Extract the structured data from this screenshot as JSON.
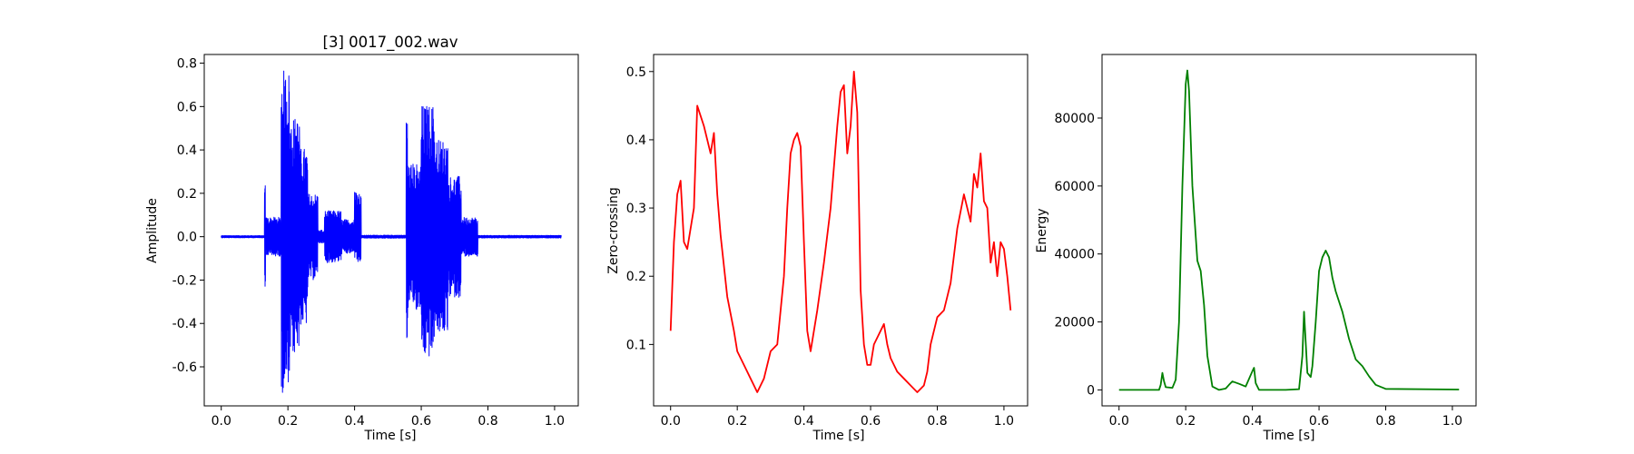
{
  "chart_data": [
    {
      "type": "line",
      "title": "[3] 0017_002.wav",
      "xlabel": "Time [s]",
      "ylabel": "Amplitude",
      "xlim": [
        -0.051,
        1.071
      ],
      "ylim": [
        -0.78,
        0.84
      ],
      "xticks": [
        "0.0",
        "0.2",
        "0.4",
        "0.6",
        "0.8",
        "1.0"
      ],
      "yticks": [
        "-0.6",
        "-0.4",
        "-0.2",
        "0.0",
        "0.2",
        "0.4",
        "0.6",
        "0.8"
      ],
      "grid": false,
      "series": [
        {
          "color": "#0000ff",
          "style": "waveform",
          "segments": [
            {
              "x": [
                0.0,
                0.13
              ],
              "amp": 0.005
            },
            {
              "x": [
                0.13,
                0.133
              ],
              "amp": 0.24,
              "min": -0.26
            },
            {
              "x": [
                0.133,
                0.18
              ],
              "amp": 0.09
            },
            {
              "x": [
                0.18,
                0.205
              ],
              "amp": 0.72,
              "max": 0.77,
              "min": -0.72
            },
            {
              "x": [
                0.205,
                0.235
              ],
              "amp": 0.55
            },
            {
              "x": [
                0.235,
                0.26
              ],
              "amp": 0.41
            },
            {
              "x": [
                0.26,
                0.29
              ],
              "amp": 0.2
            },
            {
              "x": [
                0.29,
                0.31
              ],
              "amp": 0.03
            },
            {
              "x": [
                0.31,
                0.36
              ],
              "amp": 0.12
            },
            {
              "x": [
                0.36,
                0.4
              ],
              "amp": 0.08
            },
            {
              "x": [
                0.4,
                0.42
              ],
              "amp": 0.18,
              "max": 0.21,
              "min": -0.12
            },
            {
              "x": [
                0.42,
                0.555
              ],
              "amp": 0.007
            },
            {
              "x": [
                0.555,
                0.56
              ],
              "amp": 0.48,
              "max": 0.54,
              "min": -0.5
            },
            {
              "x": [
                0.56,
                0.6
              ],
              "amp": 0.34
            },
            {
              "x": [
                0.6,
                0.64
              ],
              "amp": 0.6,
              "max": 0.61,
              "min": -0.56
            },
            {
              "x": [
                0.64,
                0.68
              ],
              "amp": 0.45
            },
            {
              "x": [
                0.68,
                0.72
              ],
              "amp": 0.28
            },
            {
              "x": [
                0.72,
                0.77
              ],
              "amp": 0.09
            },
            {
              "x": [
                0.77,
                1.02
              ],
              "amp": 0.006
            }
          ]
        }
      ]
    },
    {
      "type": "line",
      "title": "",
      "xlabel": "Time [s]",
      "ylabel": "Zero-crossing",
      "xlim": [
        -0.051,
        1.071
      ],
      "ylim": [
        0.01,
        0.525
      ],
      "xticks": [
        "0.0",
        "0.2",
        "0.4",
        "0.6",
        "0.8",
        "1.0"
      ],
      "yticks": [
        "0.1",
        "0.2",
        "0.3",
        "0.4",
        "0.5"
      ],
      "grid": false,
      "series": [
        {
          "color": "#ff0000",
          "style": "line",
          "x": [
            0.0,
            0.01,
            0.02,
            0.03,
            0.04,
            0.05,
            0.07,
            0.08,
            0.1,
            0.12,
            0.13,
            0.14,
            0.15,
            0.17,
            0.19,
            0.2,
            0.22,
            0.24,
            0.26,
            0.28,
            0.3,
            0.32,
            0.34,
            0.35,
            0.36,
            0.37,
            0.38,
            0.39,
            0.4,
            0.41,
            0.42,
            0.44,
            0.46,
            0.48,
            0.5,
            0.51,
            0.52,
            0.53,
            0.54,
            0.55,
            0.56,
            0.57,
            0.58,
            0.59,
            0.6,
            0.61,
            0.62,
            0.64,
            0.65,
            0.66,
            0.67,
            0.68,
            0.7,
            0.72,
            0.74,
            0.76,
            0.77,
            0.78,
            0.8,
            0.82,
            0.84,
            0.86,
            0.88,
            0.9,
            0.91,
            0.92,
            0.93,
            0.94,
            0.95,
            0.96,
            0.97,
            0.98,
            0.99,
            1.0,
            1.01,
            1.02
          ],
          "y": [
            0.12,
            0.25,
            0.32,
            0.34,
            0.25,
            0.24,
            0.3,
            0.45,
            0.42,
            0.38,
            0.41,
            0.32,
            0.26,
            0.17,
            0.12,
            0.09,
            0.07,
            0.05,
            0.03,
            0.05,
            0.09,
            0.1,
            0.2,
            0.3,
            0.38,
            0.4,
            0.41,
            0.39,
            0.25,
            0.12,
            0.09,
            0.15,
            0.22,
            0.3,
            0.42,
            0.47,
            0.48,
            0.38,
            0.42,
            0.5,
            0.44,
            0.18,
            0.1,
            0.07,
            0.07,
            0.1,
            0.11,
            0.13,
            0.1,
            0.08,
            0.07,
            0.06,
            0.05,
            0.04,
            0.03,
            0.04,
            0.06,
            0.1,
            0.14,
            0.15,
            0.19,
            0.27,
            0.32,
            0.28,
            0.35,
            0.33,
            0.38,
            0.31,
            0.3,
            0.22,
            0.25,
            0.2,
            0.25,
            0.24,
            0.2,
            0.15
          ]
        }
      ]
    },
    {
      "type": "line",
      "title": "",
      "xlabel": "Time [s]",
      "ylabel": "Energy",
      "xlim": [
        -0.051,
        1.071
      ],
      "ylim": [
        -4700,
        98700
      ],
      "xticks": [
        "0.0",
        "0.2",
        "0.4",
        "0.6",
        "0.8",
        "1.0"
      ],
      "yticks": [
        "0",
        "20000",
        "40000",
        "60000",
        "80000"
      ],
      "grid": false,
      "series": [
        {
          "color": "#008000",
          "style": "line",
          "x": [
            0.0,
            0.12,
            0.125,
            0.13,
            0.135,
            0.14,
            0.16,
            0.17,
            0.18,
            0.19,
            0.2,
            0.205,
            0.21,
            0.22,
            0.235,
            0.245,
            0.255,
            0.265,
            0.28,
            0.3,
            0.32,
            0.33,
            0.34,
            0.36,
            0.38,
            0.4,
            0.405,
            0.41,
            0.42,
            0.45,
            0.5,
            0.54,
            0.55,
            0.555,
            0.56,
            0.565,
            0.575,
            0.58,
            0.59,
            0.6,
            0.61,
            0.62,
            0.63,
            0.64,
            0.65,
            0.67,
            0.69,
            0.71,
            0.73,
            0.75,
            0.77,
            0.8,
            1.02
          ],
          "y": [
            0,
            0,
            1500,
            5000,
            2500,
            800,
            600,
            3000,
            20000,
            60000,
            90000,
            94000,
            88000,
            60000,
            38000,
            35000,
            25000,
            10000,
            1000,
            0,
            400,
            1500,
            2500,
            1800,
            1000,
            5500,
            6500,
            2000,
            0,
            0,
            0,
            200,
            10000,
            23000,
            14000,
            5000,
            3800,
            7000,
            20000,
            35000,
            39000,
            41000,
            39000,
            33000,
            29000,
            23000,
            15000,
            9000,
            7000,
            4000,
            1500,
            300,
            100
          ]
        }
      ]
    }
  ]
}
